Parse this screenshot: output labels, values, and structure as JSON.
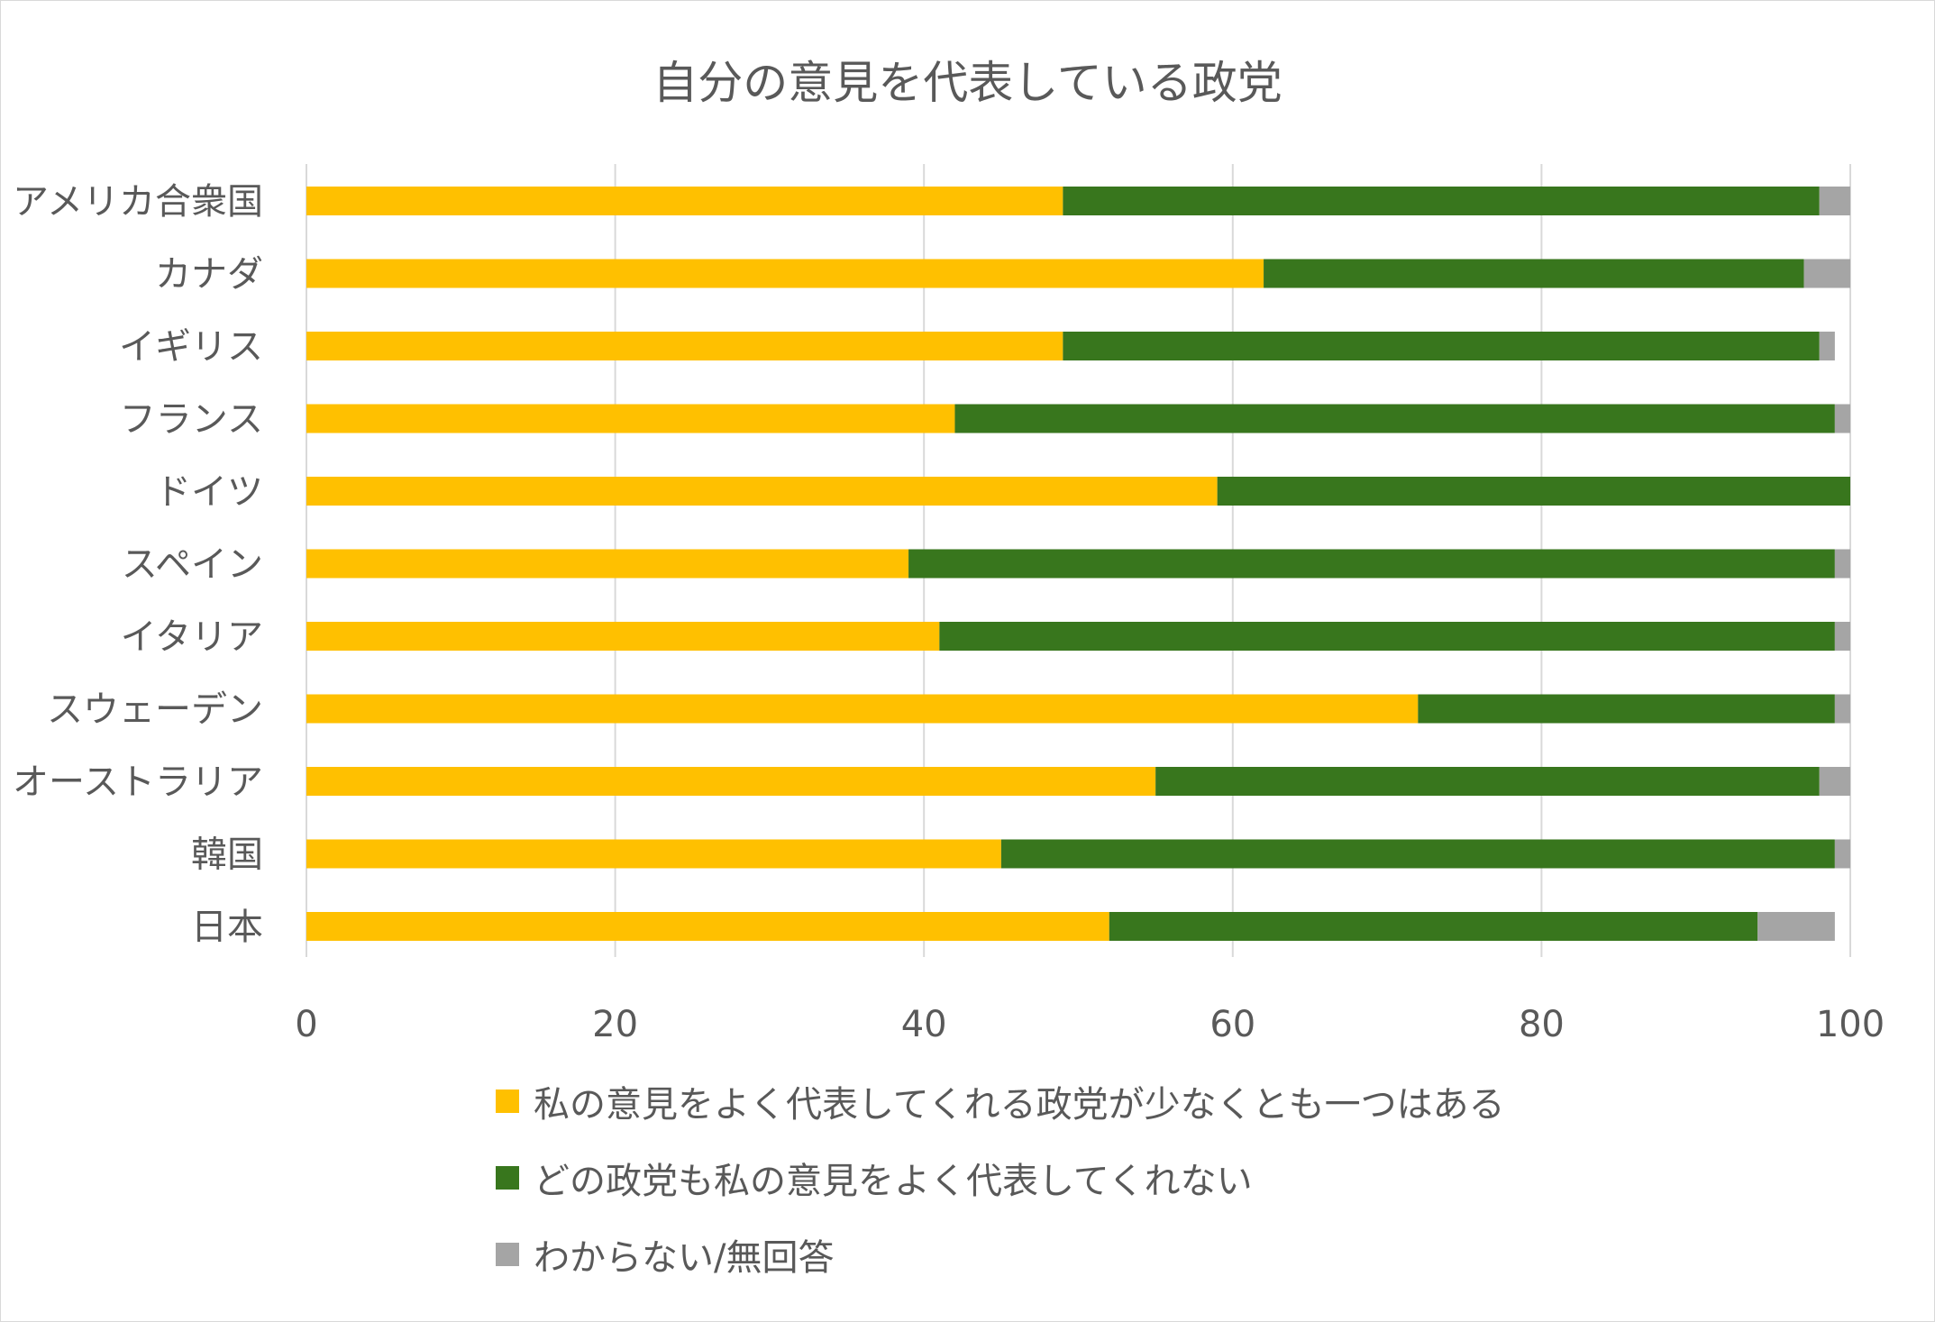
{
  "chart_data": {
    "type": "bar",
    "orientation": "horizontal",
    "stacked": true,
    "title": "自分の意見を代表している政党",
    "categories": [
      "アメリカ合衆国",
      "カナダ",
      "イギリス",
      "フランス",
      "ドイツ",
      "スペイン",
      "イタリア",
      "スウェーデン",
      "オーストラリア",
      "韓国",
      "日本"
    ],
    "series": [
      {
        "name": "私の意見をよく代表してくれる政党が少なくとも一つはある",
        "color": "#ffc000",
        "values": [
          49,
          62,
          49,
          42,
          59,
          39,
          41,
          72,
          55,
          45,
          52
        ]
      },
      {
        "name": "どの政党も私の意見をよく代表してくれない",
        "color": "#38761d",
        "values": [
          49,
          35,
          49,
          57,
          41,
          60,
          58,
          27,
          43,
          54,
          42
        ]
      },
      {
        "name": "わからない/無回答",
        "color": "#a5a5a5",
        "values": [
          2,
          3,
          1,
          1,
          0,
          1,
          1,
          1,
          2,
          1,
          5
        ]
      }
    ],
    "xlim": [
      0,
      100
    ],
    "xticks": [
      0,
      20,
      40,
      60,
      80,
      100
    ],
    "grid": true,
    "legend_position": "bottom"
  }
}
